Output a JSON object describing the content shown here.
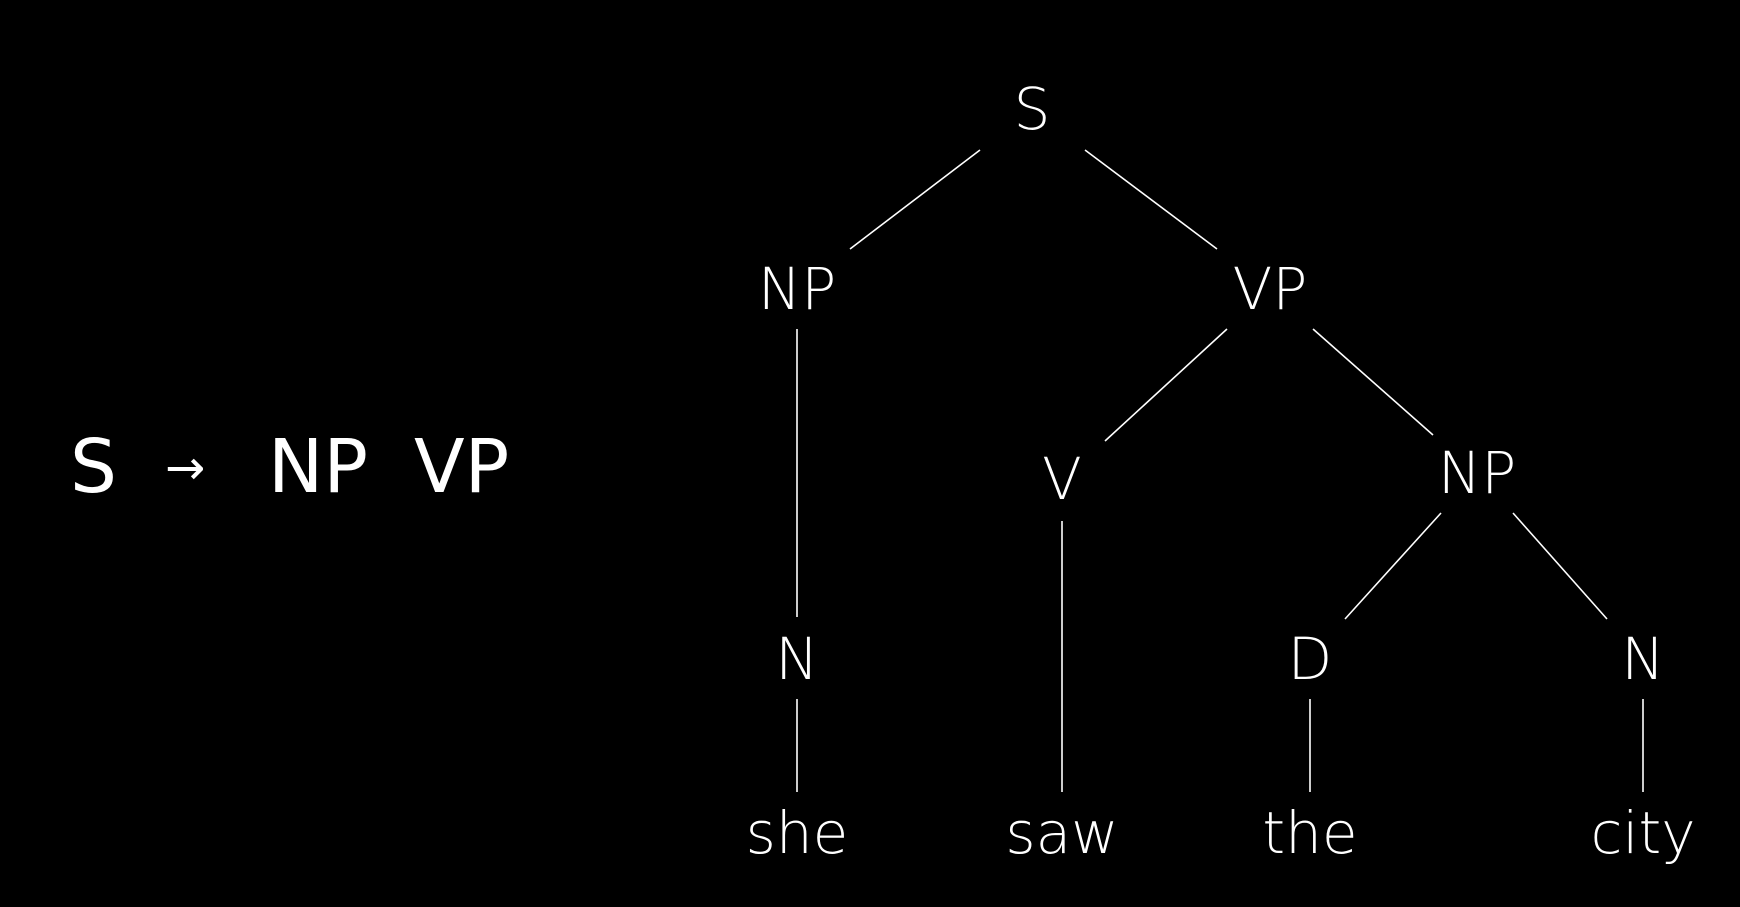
{
  "rule": {
    "lhs": "S",
    "arrow": "→",
    "rhs1": "NP",
    "rhs2": "VP"
  },
  "tree": {
    "nodes": [
      {
        "id": "s",
        "label": "S"
      },
      {
        "id": "np1",
        "label": "NP"
      },
      {
        "id": "vp",
        "label": "VP"
      },
      {
        "id": "v",
        "label": "V"
      },
      {
        "id": "np2",
        "label": "NP"
      },
      {
        "id": "n1",
        "label": "N"
      },
      {
        "id": "d",
        "label": "D"
      },
      {
        "id": "n2",
        "label": "N"
      },
      {
        "id": "w-she",
        "label": "she"
      },
      {
        "id": "w-saw",
        "label": "saw"
      },
      {
        "id": "w-the",
        "label": "the"
      },
      {
        "id": "w-city",
        "label": "city"
      }
    ],
    "edges": [
      [
        "s",
        "np1"
      ],
      [
        "s",
        "vp"
      ],
      [
        "np1",
        "n1"
      ],
      [
        "n1",
        "w-she"
      ],
      [
        "vp",
        "v"
      ],
      [
        "vp",
        "np2"
      ],
      [
        "v",
        "w-saw"
      ],
      [
        "np2",
        "d"
      ],
      [
        "np2",
        "n2"
      ],
      [
        "d",
        "w-the"
      ],
      [
        "n2",
        "w-city"
      ]
    ]
  }
}
